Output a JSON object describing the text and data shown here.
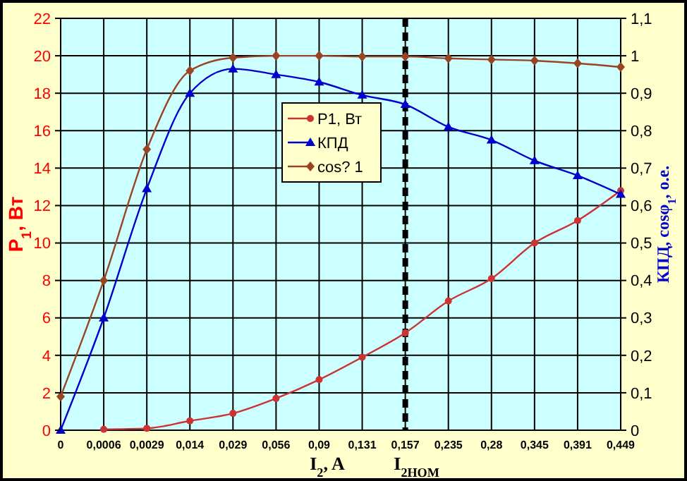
{
  "chart_data": {
    "type": "line",
    "categories": [
      "0",
      "0,0006",
      "0,0029",
      "0,014",
      "0,029",
      "0,056",
      "0,09",
      "0,131",
      "0,157",
      "0,235",
      "0,28",
      "0,345",
      "0,391",
      "0,449"
    ],
    "series": [
      {
        "name": "P1, Вт",
        "color": "#cc3333",
        "marker": "circle",
        "values": [
          null,
          0.05,
          0.1,
          0.5,
          0.9,
          1.7,
          2.7,
          3.9,
          5.2,
          6.9,
          8.1,
          10,
          11.2,
          12.8
        ]
      },
      {
        "name": "КПД",
        "color": "#0000cc",
        "marker": "triangle",
        "axis": "y2",
        "values": [
          0,
          0.3,
          0.645,
          0.9,
          0.965,
          0.95,
          0.93,
          0.895,
          0.87,
          0.81,
          0.775,
          0.72,
          0.68,
          0.63
        ]
      },
      {
        "name": "cos? 1",
        "color": "#994422",
        "marker": "diamond",
        "axis": "y2",
        "values": [
          0.09,
          0.4,
          0.75,
          0.96,
          0.995,
          1,
          1,
          0.998,
          0.998,
          0.993,
          0.99,
          0.987,
          0.98,
          0.97
        ]
      }
    ],
    "ylim": [
      0,
      22
    ],
    "yticks": [
      0,
      2,
      4,
      6,
      8,
      10,
      12,
      14,
      16,
      18,
      20,
      22
    ],
    "y2lim": [
      0,
      1.1
    ],
    "y2ticks": [
      0,
      {
        "value": 0.1,
        "label": "0,1"
      },
      {
        "value": 0.2,
        "label": "0,2"
      },
      {
        "value": 0.3,
        "label": "0,3"
      },
      {
        "value": 0.4,
        "label": "0,4"
      },
      {
        "value": 0.5,
        "label": "0,5"
      },
      {
        "value": 0.6,
        "label": "0,6"
      },
      {
        "value": 0.7,
        "label": "0,7"
      },
      {
        "value": 0.8,
        "label": "0,8"
      },
      {
        "value": 0.9,
        "label": "0,9"
      },
      1,
      {
        "value": 1.1,
        "label": "1,1"
      }
    ],
    "xlabel": "I$_{2}$, A",
    "ylabel": "P$_{1}$, Вт",
    "y2label": "КПД, cosφ$_{1}$, o.e.",
    "ref_lines": [
      {
        "axis": "x",
        "value": "0,157",
        "label": "I$_{2НОМ}$",
        "color": "#000000",
        "line_style": "dashed"
      }
    ],
    "grid": true,
    "legend": "top",
    "line_style": "solid"
  }
}
